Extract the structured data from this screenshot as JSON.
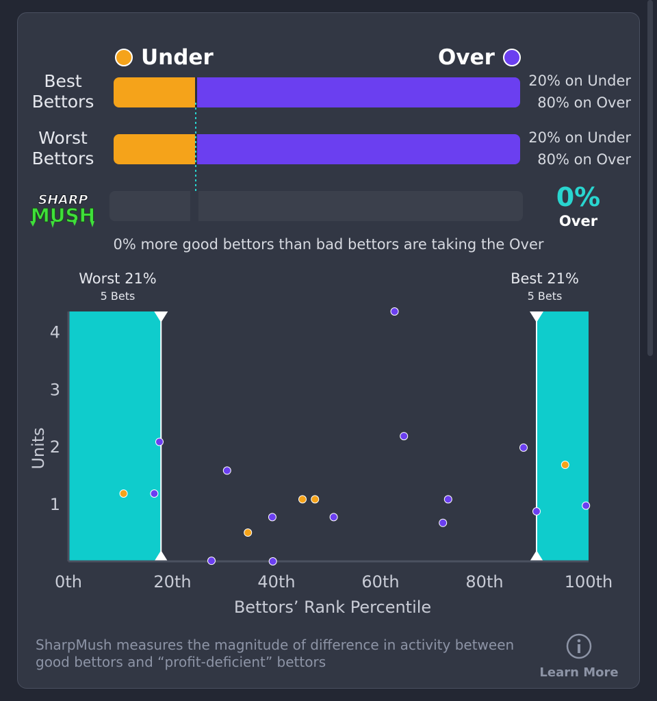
{
  "legend": {
    "under_label": "Under",
    "over_label": "Over",
    "under_color": "#f5a31a",
    "over_color": "#6b3ff0"
  },
  "rows": [
    {
      "label_line1": "Best",
      "label_line2": "Bettors",
      "under_pct": 20,
      "over_pct": 80,
      "under_text": "20% on Under",
      "over_text": "80% on Over"
    },
    {
      "label_line1": "Worst",
      "label_line2": "Bettors",
      "under_pct": 20,
      "over_pct": 80,
      "under_text": "20% on Under",
      "over_text": "80% on Over"
    }
  ],
  "sharpmush": {
    "logo_line1": "SHARP",
    "logo_line2": "MUSH",
    "value": "0%",
    "side": "Over",
    "summary": "0% more good bettors than bad bettors are taking the Over"
  },
  "chart_data": {
    "type": "scatter",
    "xlabel": "Bettors’ Rank Percentile",
    "ylabel": "Units",
    "xlim": [
      0,
      100
    ],
    "ylim": [
      0,
      4.35
    ],
    "x_ticks": [
      {
        "value": 0,
        "label": "0th"
      },
      {
        "value": 20,
        "label": "20th"
      },
      {
        "value": 40,
        "label": "40th"
      },
      {
        "value": 60,
        "label": "60th"
      },
      {
        "value": 80,
        "label": "80th"
      },
      {
        "value": 100,
        "label": "100th"
      }
    ],
    "y_ticks": [
      {
        "value": 1,
        "label": "1"
      },
      {
        "value": 2,
        "label": "2"
      },
      {
        "value": 3,
        "label": "3"
      },
      {
        "value": 4,
        "label": "4"
      }
    ],
    "worst_region": {
      "from": 0,
      "to": 17.8,
      "title": "Worst 21%",
      "subtitle": "5 Bets"
    },
    "best_region": {
      "from": 90,
      "to": 100,
      "title": "Best 21%",
      "subtitle": "5 Bets"
    },
    "region_color": "#0fcccc",
    "points": [
      {
        "x": 10.6,
        "y": 1.18,
        "side": "under"
      },
      {
        "x": 16.5,
        "y": 1.18,
        "side": "over"
      },
      {
        "x": 17.5,
        "y": 2.08,
        "side": "over"
      },
      {
        "x": 27.5,
        "y": 0.01,
        "side": "over"
      },
      {
        "x": 30.5,
        "y": 1.58,
        "side": "over"
      },
      {
        "x": 34.5,
        "y": 0.5,
        "side": "under"
      },
      {
        "x": 39.2,
        "y": 0.77,
        "side": "over"
      },
      {
        "x": 39.3,
        "y": 0.0,
        "side": "over"
      },
      {
        "x": 45.0,
        "y": 1.08,
        "side": "under"
      },
      {
        "x": 47.4,
        "y": 1.08,
        "side": "under"
      },
      {
        "x": 51.0,
        "y": 0.77,
        "side": "over"
      },
      {
        "x": 62.7,
        "y": 4.35,
        "side": "over"
      },
      {
        "x": 64.5,
        "y": 2.18,
        "side": "over"
      },
      {
        "x": 72.0,
        "y": 0.67,
        "side": "over"
      },
      {
        "x": 73.0,
        "y": 1.08,
        "side": "over"
      },
      {
        "x": 87.5,
        "y": 1.98,
        "side": "over"
      },
      {
        "x": 90.0,
        "y": 0.87,
        "side": "over"
      },
      {
        "x": 95.5,
        "y": 1.68,
        "side": "under"
      },
      {
        "x": 99.5,
        "y": 0.97,
        "side": "over"
      }
    ]
  },
  "footer": {
    "description": "SharpMush measures the magnitude of difference in activity between good bettors and “profit-deficient” bettors",
    "learn_more": "Learn More"
  }
}
